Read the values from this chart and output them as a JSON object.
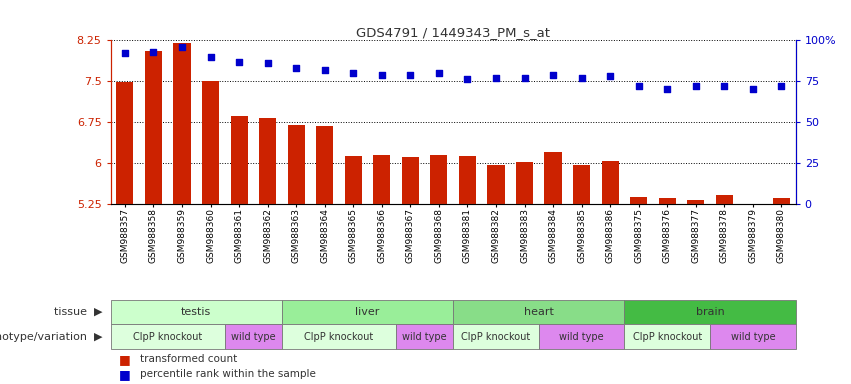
{
  "title": "GDS4791 / 1449343_PM_s_at",
  "samples": [
    "GSM988357",
    "GSM988358",
    "GSM988359",
    "GSM988360",
    "GSM988361",
    "GSM988362",
    "GSM988363",
    "GSM988364",
    "GSM988365",
    "GSM988366",
    "GSM988367",
    "GSM988368",
    "GSM988381",
    "GSM988382",
    "GSM988383",
    "GSM988384",
    "GSM988385",
    "GSM988386",
    "GSM988375",
    "GSM988376",
    "GSM988377",
    "GSM988378",
    "GSM988379",
    "GSM988380"
  ],
  "bar_values": [
    7.48,
    8.05,
    8.2,
    7.5,
    6.85,
    6.83,
    6.7,
    6.67,
    6.13,
    6.14,
    6.1,
    6.15,
    6.12,
    5.96,
    6.02,
    6.2,
    5.96,
    6.03,
    5.37,
    5.35,
    5.32,
    5.4,
    5.25,
    5.36
  ],
  "percentile_values": [
    92,
    93,
    96,
    90,
    87,
    86,
    83,
    82,
    80,
    79,
    79,
    80,
    76,
    77,
    77,
    79,
    77,
    78,
    72,
    70,
    72,
    72,
    70,
    72
  ],
  "ymin": 5.25,
  "ymax": 8.25,
  "yticks": [
    5.25,
    6.0,
    6.75,
    7.5,
    8.25
  ],
  "ytick_labels": [
    "5.25",
    "6",
    "6.75",
    "7.5",
    "8.25"
  ],
  "right_yticks": [
    0,
    25,
    50,
    75,
    100
  ],
  "right_ytick_labels": [
    "0",
    "25",
    "50",
    "75",
    "100%"
  ],
  "bar_color": "#cc2200",
  "dot_color": "#0000cc",
  "tissues": [
    {
      "label": "testis",
      "start": 0,
      "end": 6,
      "color": "#ccffcc"
    },
    {
      "label": "liver",
      "start": 6,
      "end": 12,
      "color": "#99ee99"
    },
    {
      "label": "heart",
      "start": 12,
      "end": 18,
      "color": "#88dd88"
    },
    {
      "label": "brain",
      "start": 18,
      "end": 24,
      "color": "#44bb44"
    }
  ],
  "genotypes": [
    {
      "label": "ClpP knockout",
      "start": 0,
      "end": 4,
      "color": "#ddffdd"
    },
    {
      "label": "wild type",
      "start": 4,
      "end": 6,
      "color": "#dd88ee"
    },
    {
      "label": "ClpP knockout",
      "start": 6,
      "end": 10,
      "color": "#ddffdd"
    },
    {
      "label": "wild type",
      "start": 10,
      "end": 12,
      "color": "#dd88ee"
    },
    {
      "label": "ClpP knockout",
      "start": 12,
      "end": 15,
      "color": "#ddffdd"
    },
    {
      "label": "wild type",
      "start": 15,
      "end": 18,
      "color": "#dd88ee"
    },
    {
      "label": "ClpP knockout",
      "start": 18,
      "end": 21,
      "color": "#ddffdd"
    },
    {
      "label": "wild type",
      "start": 21,
      "end": 24,
      "color": "#dd88ee"
    }
  ],
  "tissue_label": "tissue",
  "genotype_label": "genotype/variation",
  "legend_bar_label": "transformed count",
  "legend_dot_label": "percentile rank within the sample",
  "bg_color": "#ffffff"
}
